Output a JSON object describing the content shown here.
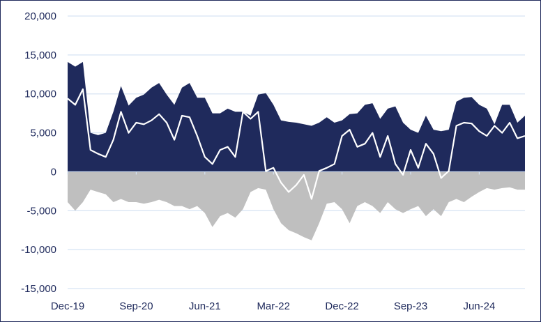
{
  "chart_data": {
    "type": "area",
    "title": "",
    "xlabel": "",
    "ylabel": "",
    "ylim": [
      -15000,
      20000
    ],
    "yticks": [
      "20,000",
      "15,000",
      "10,000",
      "5,000",
      "0",
      "-5,000",
      "-10,000",
      "-15,000"
    ],
    "ytick_values": [
      20000,
      15000,
      10000,
      5000,
      0,
      -5000,
      -10000,
      -15000
    ],
    "xticks": [
      "Dec-19",
      "Sep-20",
      "Jun-21",
      "Mar-22",
      "Dec-22",
      "Sep-23",
      "Jun-24"
    ],
    "xtick_month_index": [
      0,
      9,
      18,
      27,
      36,
      45,
      54
    ],
    "grid": true,
    "x": [
      "Dec-19",
      "Jan-20",
      "Feb-20",
      "Mar-20",
      "Apr-20",
      "May-20",
      "Jun-20",
      "Jul-20",
      "Aug-20",
      "Sep-20",
      "Oct-20",
      "Nov-20",
      "Dec-20",
      "Jan-21",
      "Feb-21",
      "Mar-21",
      "Apr-21",
      "May-21",
      "Jun-21",
      "Jul-21",
      "Aug-21",
      "Sep-21",
      "Oct-21",
      "Nov-21",
      "Dec-21",
      "Jan-22",
      "Feb-22",
      "Mar-22",
      "Apr-22",
      "May-22",
      "Jun-22",
      "Jul-22",
      "Aug-22",
      "Sep-22",
      "Oct-22",
      "Nov-22",
      "Dec-22",
      "Jan-23",
      "Feb-23",
      "Mar-23",
      "Apr-23",
      "May-23",
      "Jun-23",
      "Jul-23",
      "Aug-23",
      "Sep-23",
      "Oct-23",
      "Nov-23",
      "Dec-23",
      "Jan-24",
      "Feb-24",
      "Mar-24",
      "Apr-24",
      "May-24",
      "Jun-24",
      "Jul-24",
      "Aug-24",
      "Sep-24",
      "Oct-24",
      "Nov-24",
      "Dec-24"
    ],
    "series": [
      {
        "kind": "area",
        "color": "#1f2a5c",
        "values": [
          14100,
          13500,
          14100,
          5000,
          4700,
          5000,
          7700,
          11000,
          8500,
          9500,
          9900,
          10800,
          11400,
          9900,
          8600,
          10800,
          11400,
          9500,
          9500,
          7500,
          7500,
          8100,
          7700,
          7700,
          7200,
          9900,
          10100,
          8600,
          6600,
          6400,
          6300,
          6100,
          5900,
          6300,
          7000,
          6300,
          6600,
          7400,
          7500,
          8600,
          8800,
          6800,
          8100,
          8400,
          6300,
          5400,
          5000,
          7200,
          5400,
          5200,
          5400,
          9000,
          9500,
          9600,
          8600,
          8100,
          6100,
          8600,
          8600,
          6300,
          7200
        ]
      },
      {
        "kind": "area",
        "color": "#bfbfbf",
        "values": [
          -3900,
          -5000,
          -3900,
          -2300,
          -2600,
          -2900,
          -3900,
          -3500,
          -3900,
          -3900,
          -4100,
          -3900,
          -3600,
          -3900,
          -4400,
          -4400,
          -4800,
          -4400,
          -5300,
          -7100,
          -5700,
          -5300,
          -5900,
          -4800,
          -2600,
          -2100,
          -2300,
          -4800,
          -6600,
          -7500,
          -7900,
          -8400,
          -8800,
          -6600,
          -4100,
          -3900,
          -4800,
          -6600,
          -4400,
          -3900,
          -4400,
          -5300,
          -3900,
          -4800,
          -5300,
          -4800,
          -4400,
          -5700,
          -4800,
          -5700,
          -3900,
          -3500,
          -3900,
          -3200,
          -2600,
          -2100,
          -2300,
          -2100,
          -2000,
          -2300,
          -2300
        ]
      },
      {
        "kind": "line",
        "color": "#ffffff",
        "values": [
          9400,
          8600,
          10600,
          2800,
          2300,
          1900,
          4100,
          7700,
          5000,
          6300,
          6100,
          6600,
          7400,
          6300,
          4100,
          7200,
          7000,
          4600,
          1900,
          1000,
          2800,
          3200,
          1900,
          7700,
          6800,
          7700,
          100,
          500,
          -1400,
          -2600,
          -1700,
          -400,
          -3500,
          100,
          500,
          1000,
          4600,
          5400,
          3200,
          3600,
          5000,
          1900,
          4600,
          1000,
          -400,
          2800,
          500,
          3600,
          2300,
          -800,
          100,
          5900,
          6300,
          6200,
          5200,
          4600,
          5900,
          5000,
          6300,
          4300,
          4600
        ]
      }
    ]
  }
}
